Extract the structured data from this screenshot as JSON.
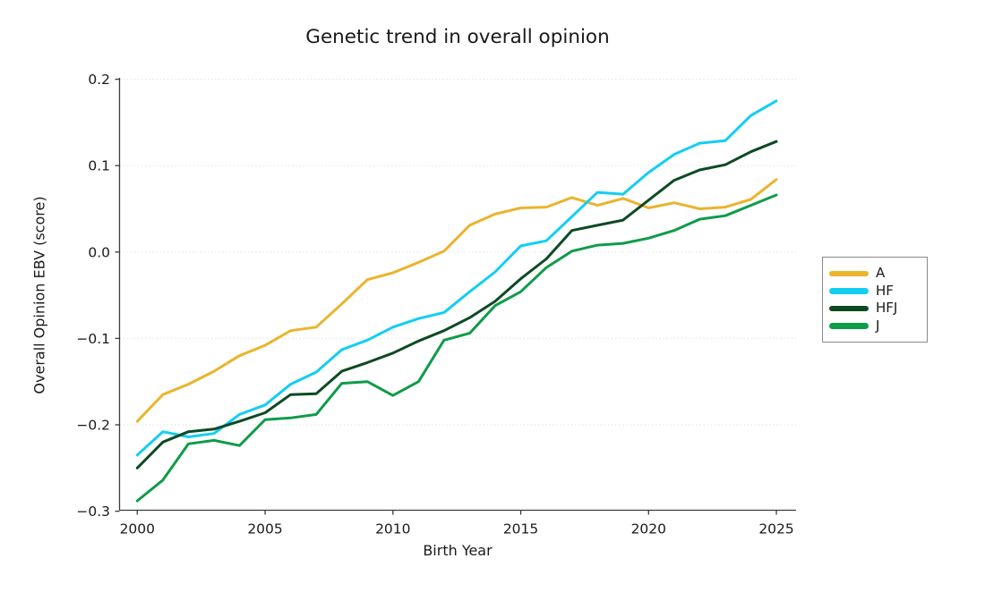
{
  "title": "Genetic trend in overall opinion",
  "axes": {
    "xlabel": "Birth Year",
    "ylabel": "Overall Opinion EBV (score)",
    "x_ticks": [
      {
        "label": "2000",
        "value": 2000
      },
      {
        "label": "2005",
        "value": 2005
      },
      {
        "label": "2010",
        "value": 2010
      },
      {
        "label": "2015",
        "value": 2015
      },
      {
        "label": "2020",
        "value": 2020
      },
      {
        "label": "2025",
        "value": 2025
      }
    ],
    "y_ticks": [
      {
        "label": "0.2",
        "value": 0.2
      },
      {
        "label": "0.1",
        "value": 0.1
      },
      {
        "label": "0.0",
        "value": 0.0
      },
      {
        "label": "−0.1",
        "value": -0.1
      },
      {
        "label": "−0.2",
        "value": -0.2
      },
      {
        "label": "−0.3",
        "value": -0.3
      }
    ]
  },
  "chart_data": {
    "type": "line",
    "title": "Genetic trend in overall opinion",
    "xlabel": "Birth Year",
    "ylabel": "Overall Opinion EBV (score)",
    "xlim": [
      1999.3,
      2026
    ],
    "ylim": [
      -0.3,
      0.2
    ],
    "grid": "dotted horizontal gridlines at each y tick",
    "legend_position": "right, outside plot, boxed",
    "x": [
      2000,
      2001,
      2002,
      2003,
      2004,
      2005,
      2006,
      2007,
      2008,
      2009,
      2010,
      2011,
      2012,
      2013,
      2014,
      2015,
      2016,
      2017,
      2018,
      2019,
      2020,
      2021,
      2022,
      2023,
      2024,
      2025
    ],
    "series": [
      {
        "name": "A",
        "color": "#EAB42C",
        "values": [
          -0.196,
          -0.165,
          -0.153,
          -0.138,
          -0.12,
          -0.108,
          -0.091,
          -0.087,
          -0.06,
          -0.032,
          -0.024,
          -0.012,
          0.001,
          0.031,
          0.044,
          0.051,
          0.052,
          0.063,
          0.054,
          0.062,
          0.051,
          0.057,
          0.05,
          0.052,
          0.061,
          0.084
        ]
      },
      {
        "name": "HF",
        "color": "#12CEF3",
        "values": [
          -0.235,
          -0.208,
          -0.214,
          -0.21,
          -0.188,
          -0.177,
          -0.153,
          -0.139,
          -0.113,
          -0.102,
          -0.087,
          -0.077,
          -0.07,
          -0.046,
          -0.023,
          0.007,
          0.013,
          0.041,
          0.069,
          0.067,
          0.092,
          0.113,
          0.126,
          0.129,
          0.158,
          0.175
        ]
      },
      {
        "name": "HFJ",
        "color": "#0D4A23",
        "values": [
          -0.25,
          -0.22,
          -0.208,
          -0.205,
          -0.196,
          -0.186,
          -0.165,
          -0.164,
          -0.138,
          -0.128,
          -0.117,
          -0.103,
          -0.091,
          -0.076,
          -0.057,
          -0.031,
          -0.008,
          0.025,
          0.031,
          0.037,
          0.06,
          0.083,
          0.095,
          0.101,
          0.116,
          0.128
        ]
      },
      {
        "name": "J",
        "color": "#0E9C49",
        "values": [
          -0.288,
          -0.264,
          -0.222,
          -0.218,
          -0.224,
          -0.194,
          -0.192,
          -0.188,
          -0.152,
          -0.15,
          -0.166,
          -0.15,
          -0.102,
          -0.094,
          -0.062,
          -0.046,
          -0.018,
          0.001,
          0.008,
          0.01,
          0.016,
          0.025,
          0.038,
          0.042,
          0.054,
          0.066
        ]
      }
    ],
    "style": {
      "line_width": 3,
      "spine_color": "#3b3b3b",
      "grid_color": "#e7e7e7",
      "tick_label_color": "#1a1a1a"
    }
  }
}
